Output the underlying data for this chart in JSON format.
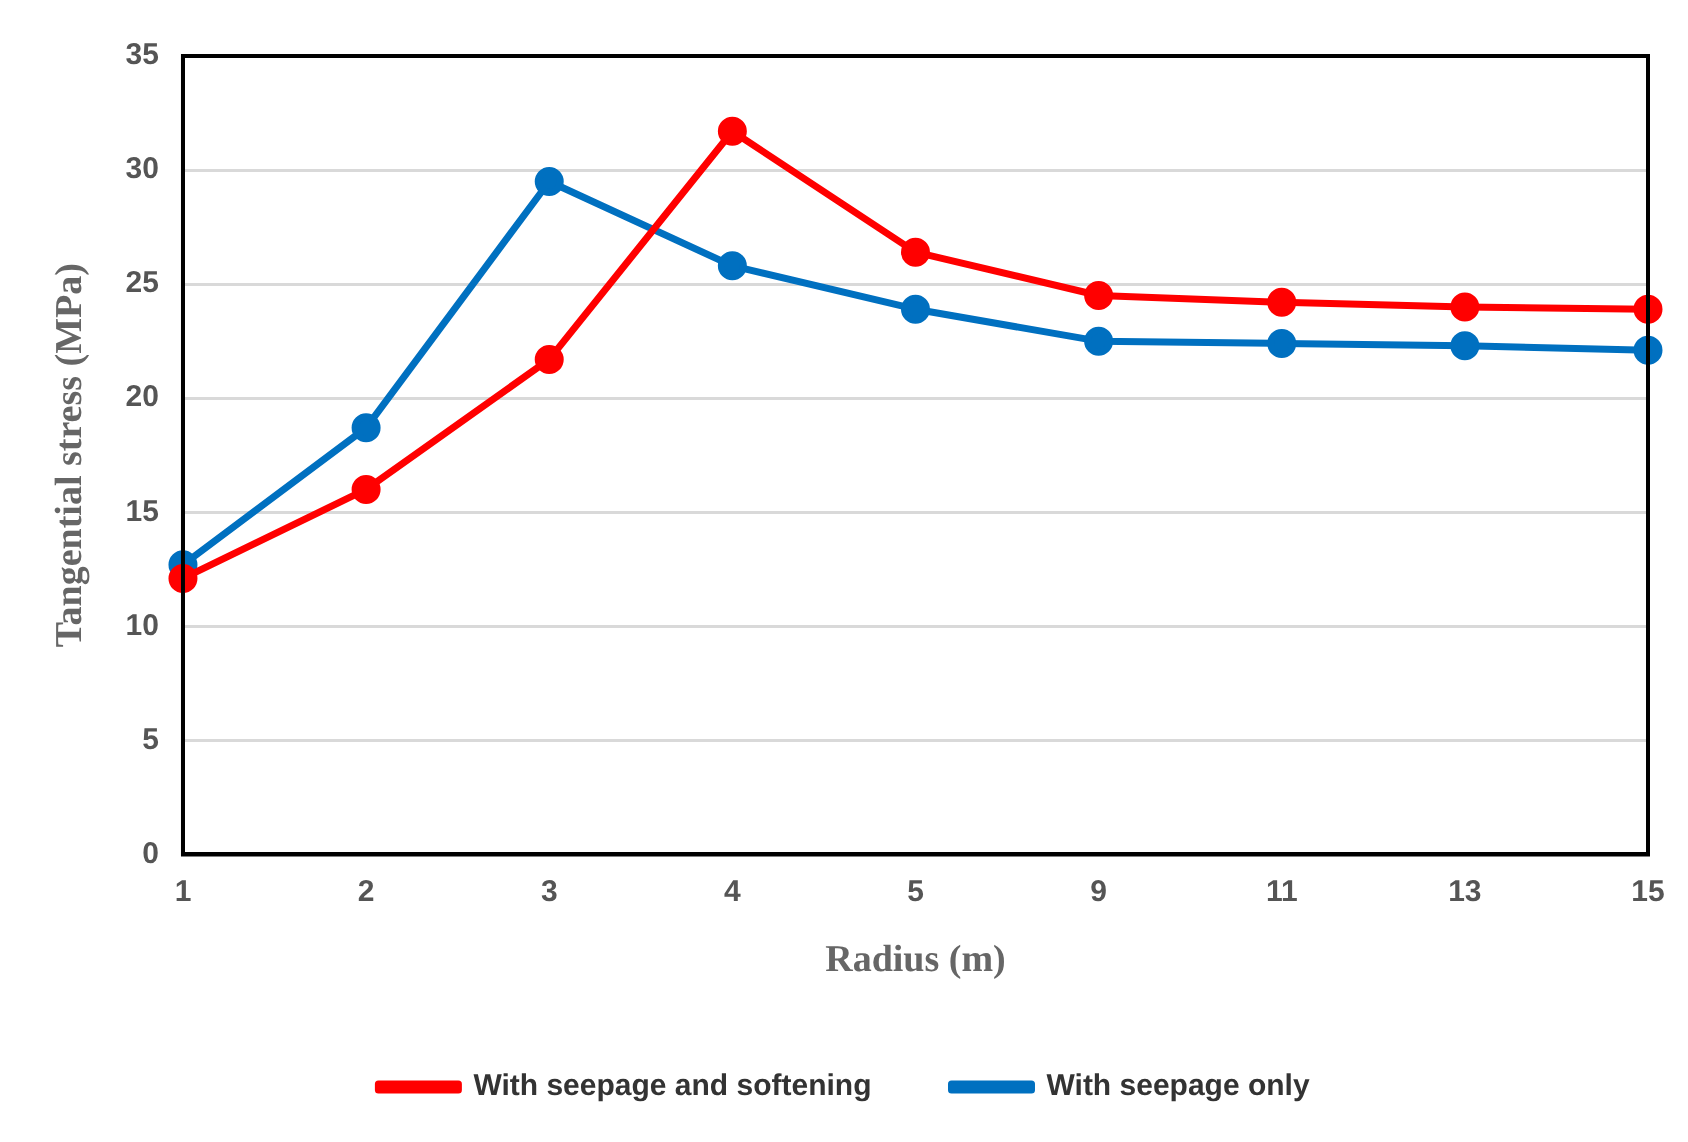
{
  "chart_data": {
    "type": "line",
    "xlabel": "Radius (m)",
    "ylabel": "Tangential stress (MPa)",
    "categories": [
      "1",
      "2",
      "3",
      "4",
      "5",
      "9",
      "11",
      "13",
      "15"
    ],
    "series": [
      {
        "name": "With seepage and softening",
        "color": "#ff0000",
        "values": [
          12.1,
          16.0,
          21.7,
          31.7,
          26.4,
          24.5,
          24.2,
          24.0,
          23.9
        ]
      },
      {
        "name": "With seepage only",
        "color": "#0070c0",
        "values": [
          12.7,
          18.7,
          29.5,
          25.8,
          23.9,
          22.5,
          22.4,
          22.3,
          22.1
        ]
      }
    ],
    "ylim": [
      0,
      35
    ],
    "yticks": [
      0,
      5,
      10,
      15,
      20,
      25,
      30,
      35
    ],
    "grid": "y",
    "legend": "bottom",
    "marker": "circle",
    "line_style": "solid"
  }
}
